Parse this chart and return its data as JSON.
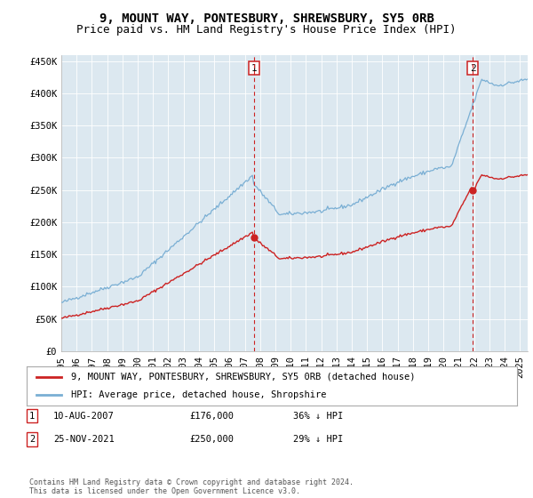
{
  "title": "9, MOUNT WAY, PONTESBURY, SHREWSBURY, SY5 0RB",
  "subtitle": "Price paid vs. HM Land Registry's House Price Index (HPI)",
  "bg_color": "#dce8f0",
  "fig_color": "#ffffff",
  "hpi_color": "#7aafd4",
  "price_color": "#cc2222",
  "dashed_color": "#cc2222",
  "ylim": [
    0,
    460000
  ],
  "yticks": [
    0,
    50000,
    100000,
    150000,
    200000,
    250000,
    300000,
    350000,
    400000,
    450000
  ],
  "ytick_labels": [
    "£0",
    "£50K",
    "£100K",
    "£150K",
    "£200K",
    "£250K",
    "£300K",
    "£350K",
    "£400K",
    "£450K"
  ],
  "xlim_start": 1995.0,
  "xlim_end": 2025.5,
  "xticks": [
    1995,
    1996,
    1997,
    1998,
    1999,
    2000,
    2001,
    2002,
    2003,
    2004,
    2005,
    2006,
    2007,
    2008,
    2009,
    2010,
    2011,
    2012,
    2013,
    2014,
    2015,
    2016,
    2017,
    2018,
    2019,
    2020,
    2021,
    2022,
    2023,
    2024,
    2025
  ],
  "sale1_x": 2007.608,
  "sale1_y": 176000,
  "sale1_label": "1",
  "sale2_x": 2021.899,
  "sale2_y": 250000,
  "sale2_label": "2",
  "legend_red_label": "9, MOUNT WAY, PONTESBURY, SHREWSBURY, SY5 0RB (detached house)",
  "legend_blue_label": "HPI: Average price, detached house, Shropshire",
  "footnote": "Contains HM Land Registry data © Crown copyright and database right 2024.\nThis data is licensed under the Open Government Licence v3.0.",
  "title_fontsize": 10,
  "subtitle_fontsize": 9,
  "tick_fontsize": 7.5,
  "legend_fontsize": 7.5,
  "ann_fontsize": 7.5
}
